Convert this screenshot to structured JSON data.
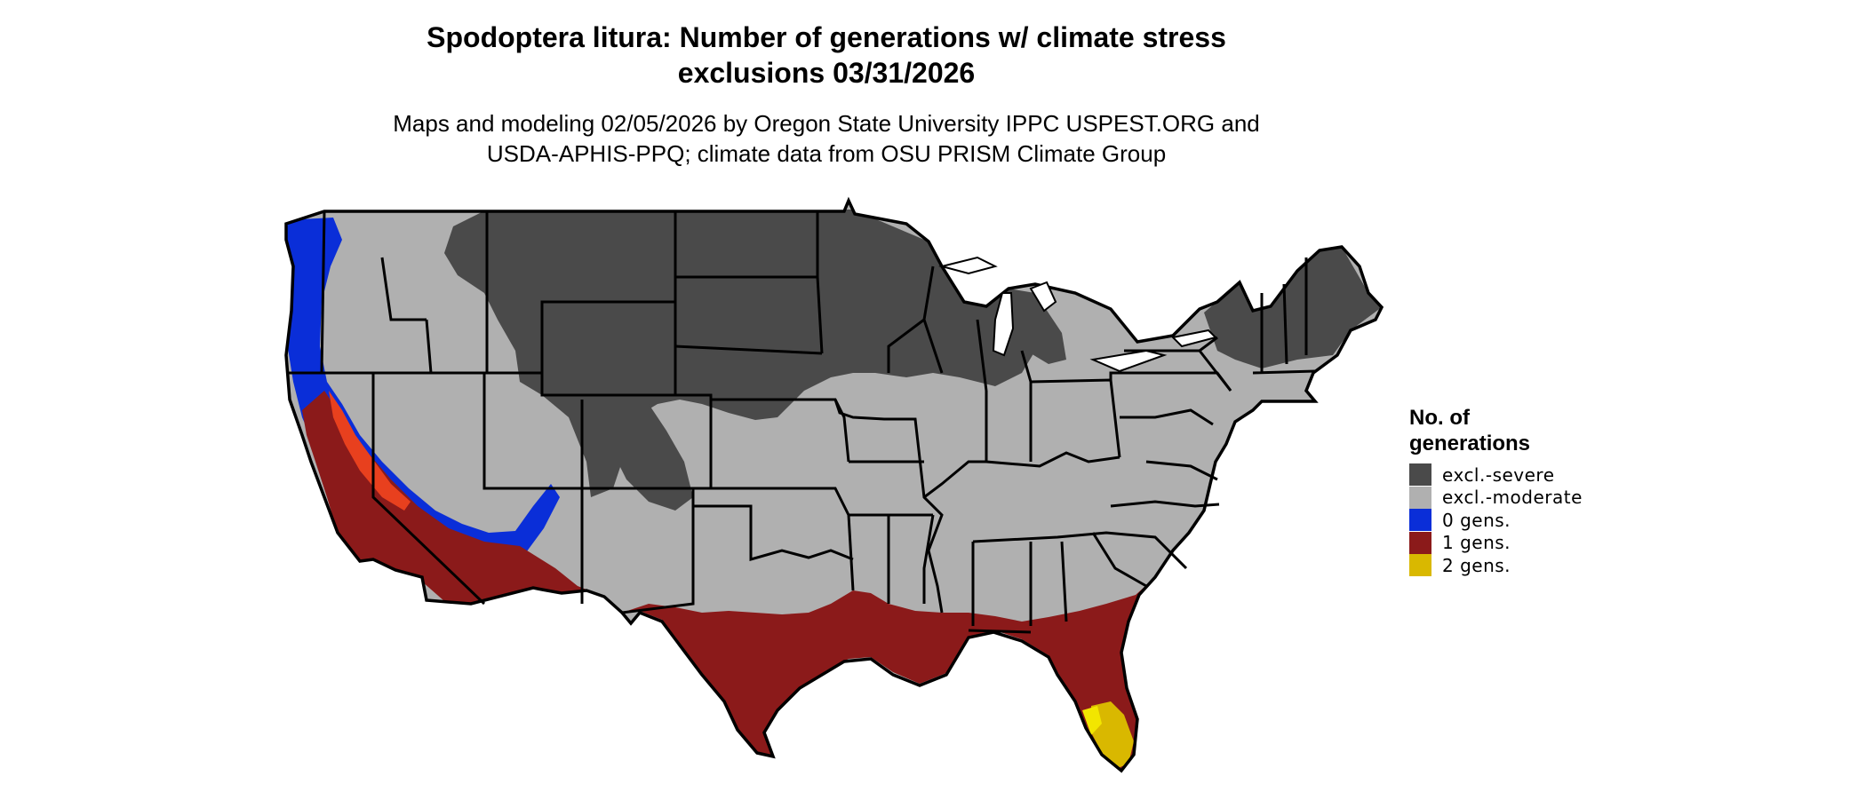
{
  "title_line1": "Spodoptera litura: Number of generations w/ climate stress",
  "title_line2": "exclusions 03/31/2026",
  "subtitle_line1": "Maps and modeling 02/05/2026 by Oregon State University IPPC USPEST.ORG and",
  "subtitle_line2": "USDA-APHIS-PPQ; climate data from OSU PRISM Climate Group",
  "legend": {
    "title_line1": "No. of",
    "title_line2": "generations",
    "items": [
      {
        "label": "excl.-severe",
        "color": "#4a4a4a"
      },
      {
        "label": "excl.-moderate",
        "color": "#b0b0b0"
      },
      {
        "label": "0 gens.",
        "color": "#0a2ed8"
      },
      {
        "label": "1 gens.",
        "color": "#8b1a1a"
      },
      {
        "label": "2 gens.",
        "color": "#d9b800"
      }
    ]
  },
  "colors": {
    "severe": "#4a4a4a",
    "moderate": "#b0b0b0",
    "zero": "#0a2ed8",
    "one": "#8b1a1a",
    "one_highlight": "#e8401e",
    "two": "#d9b800",
    "two_bright": "#f2e600",
    "border": "#000000"
  }
}
